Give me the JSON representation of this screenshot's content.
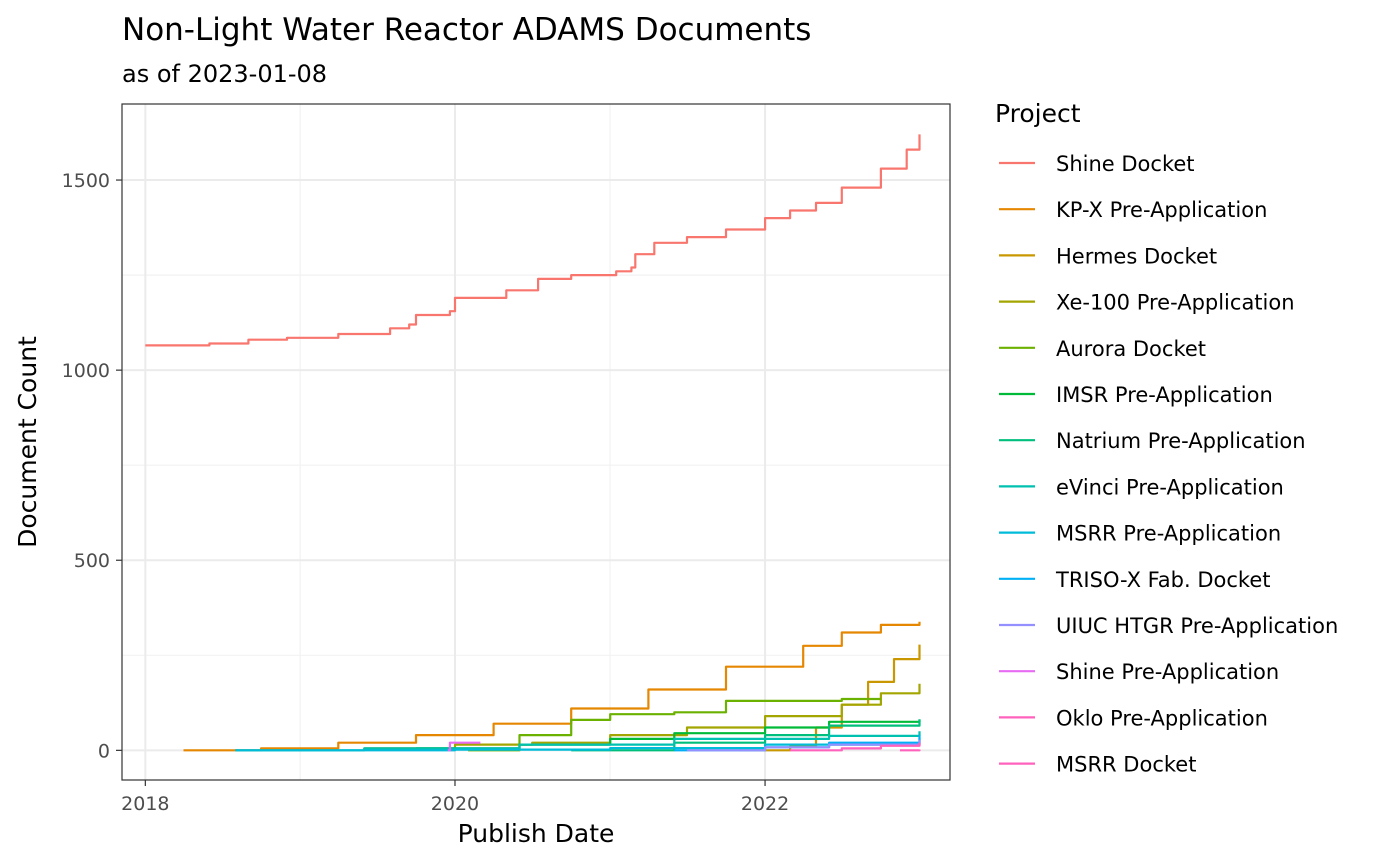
{
  "chart_data": {
    "type": "line",
    "title": "Non-Light Water Reactor ADAMS Documents",
    "subtitle": "as of 2023-01-08",
    "xlabel": "Publish Date",
    "ylabel": "Document Count",
    "xlim": [
      "2017-11-07",
      "2023-03-13"
    ],
    "ylim": [
      -78,
      1700
    ],
    "x_ticks": [
      {
        "value": "2018-01-01",
        "label": "2018"
      },
      {
        "value": "2020-01-01",
        "label": "2020"
      },
      {
        "value": "2022-01-01",
        "label": "2022"
      }
    ],
    "y_ticks": [
      {
        "value": 0,
        "label": "0"
      },
      {
        "value": 500,
        "label": "500"
      },
      {
        "value": 1000,
        "label": "1000"
      },
      {
        "value": 1500,
        "label": "1500"
      }
    ],
    "grid": true,
    "legend_title": "Project",
    "legend_position": "right",
    "series": [
      {
        "name": "Shine Docket",
        "color": "#F8766D",
        "points": [
          [
            "2018-01-01",
            1065
          ],
          [
            "2018-06-01",
            1070
          ],
          [
            "2018-09-01",
            1080
          ],
          [
            "2018-12-01",
            1085
          ],
          [
            "2019-04-01",
            1095
          ],
          [
            "2019-08-01",
            1110
          ],
          [
            "2019-09-15",
            1120
          ],
          [
            "2019-10-01",
            1145
          ],
          [
            "2019-12-20",
            1155
          ],
          [
            "2020-01-01",
            1190
          ],
          [
            "2020-05-01",
            1210
          ],
          [
            "2020-07-15",
            1240
          ],
          [
            "2020-10-01",
            1250
          ],
          [
            "2021-01-15",
            1260
          ],
          [
            "2021-02-20",
            1270
          ],
          [
            "2021-03-01",
            1305
          ],
          [
            "2021-04-15",
            1335
          ],
          [
            "2021-07-01",
            1350
          ],
          [
            "2021-10-01",
            1370
          ],
          [
            "2022-01-01",
            1400
          ],
          [
            "2022-03-01",
            1420
          ],
          [
            "2022-05-01",
            1440
          ],
          [
            "2022-07-01",
            1480
          ],
          [
            "2022-10-01",
            1530
          ],
          [
            "2022-12-01",
            1580
          ],
          [
            "2022-12-31",
            1620
          ]
        ]
      },
      {
        "name": "KP-X Pre-Application",
        "color": "#E58700",
        "points": [
          [
            "2018-04-01",
            0
          ],
          [
            "2018-10-01",
            5
          ],
          [
            "2019-04-01",
            20
          ],
          [
            "2019-10-01",
            40
          ],
          [
            "2020-04-01",
            70
          ],
          [
            "2020-10-01",
            110
          ],
          [
            "2021-04-01",
            160
          ],
          [
            "2021-10-01",
            220
          ],
          [
            "2022-04-01",
            275
          ],
          [
            "2022-07-01",
            310
          ],
          [
            "2022-10-01",
            330
          ],
          [
            "2022-12-31",
            338
          ]
        ]
      },
      {
        "name": "Hermes Docket",
        "color": "#C99800",
        "points": [
          [
            "2021-11-01",
            0
          ],
          [
            "2022-03-01",
            10
          ],
          [
            "2022-05-01",
            60
          ],
          [
            "2022-07-01",
            120
          ],
          [
            "2022-09-01",
            180
          ],
          [
            "2022-11-01",
            240
          ],
          [
            "2022-12-31",
            278
          ]
        ]
      },
      {
        "name": "Xe-100 Pre-Application",
        "color": "#A3A500",
        "points": [
          [
            "2019-06-01",
            5
          ],
          [
            "2020-01-01",
            15
          ],
          [
            "2020-07-01",
            20
          ],
          [
            "2021-01-01",
            40
          ],
          [
            "2021-07-01",
            60
          ],
          [
            "2022-01-01",
            90
          ],
          [
            "2022-07-01",
            120
          ],
          [
            "2022-10-01",
            150
          ],
          [
            "2022-12-31",
            175
          ]
        ]
      },
      {
        "name": "Aurora Docket",
        "color": "#6BB100",
        "points": [
          [
            "2020-02-01",
            0
          ],
          [
            "2020-06-01",
            40
          ],
          [
            "2020-10-01",
            80
          ],
          [
            "2021-01-01",
            95
          ],
          [
            "2021-06-01",
            100
          ],
          [
            "2021-10-01",
            130
          ],
          [
            "2022-07-01",
            135
          ],
          [
            "2022-10-01",
            135
          ]
        ]
      },
      {
        "name": "IMSR Pre-Application",
        "color": "#00BA38",
        "points": [
          [
            "2019-10-01",
            5
          ],
          [
            "2020-06-01",
            15
          ],
          [
            "2021-01-01",
            30
          ],
          [
            "2021-06-01",
            45
          ],
          [
            "2022-01-01",
            60
          ],
          [
            "2022-06-01",
            75
          ],
          [
            "2022-12-31",
            80
          ]
        ]
      },
      {
        "name": "Natrium Pre-Application",
        "color": "#00BF7D",
        "points": [
          [
            "2020-10-01",
            0
          ],
          [
            "2021-06-01",
            20
          ],
          [
            "2022-01-01",
            40
          ],
          [
            "2022-06-01",
            65
          ],
          [
            "2022-12-31",
            82
          ]
        ]
      },
      {
        "name": "eVinci Pre-Application",
        "color": "#00C0AF",
        "points": [
          [
            "2018-08-01",
            0
          ],
          [
            "2019-06-01",
            5
          ],
          [
            "2020-06-01",
            15
          ],
          [
            "2021-06-01",
            30
          ],
          [
            "2022-06-01",
            38
          ],
          [
            "2022-12-31",
            50
          ]
        ]
      },
      {
        "name": "MSRR Pre-Application",
        "color": "#00BCD8",
        "points": [
          [
            "2018-08-01",
            0
          ],
          [
            "2020-01-01",
            2
          ],
          [
            "2021-01-01",
            6
          ],
          [
            "2022-01-01",
            15
          ],
          [
            "2022-12-31",
            32
          ]
        ]
      },
      {
        "name": "TRISO-X Fab. Docket",
        "color": "#00B0F6",
        "points": [
          [
            "2021-06-01",
            0
          ],
          [
            "2022-01-01",
            8
          ],
          [
            "2022-06-01",
            20
          ],
          [
            "2022-12-31",
            40
          ]
        ]
      },
      {
        "name": "UIUC HTGR Pre-Application",
        "color": "#9590FF",
        "points": [
          [
            "2021-07-01",
            0
          ],
          [
            "2022-01-01",
            8
          ],
          [
            "2022-06-01",
            15
          ],
          [
            "2022-12-31",
            28
          ]
        ]
      },
      {
        "name": "Shine Pre-Application",
        "color": "#E76BF3",
        "points": [
          [
            "2019-12-15",
            0
          ],
          [
            "2019-12-20",
            20
          ],
          [
            "2020-03-01",
            20
          ]
        ]
      },
      {
        "name": "Oklo Pre-Application",
        "color": "#FF62BC",
        "points": [
          [
            "2022-03-01",
            0
          ],
          [
            "2022-07-01",
            5
          ],
          [
            "2022-10-01",
            12
          ],
          [
            "2022-12-31",
            20
          ]
        ]
      },
      {
        "name": "MSRR Docket",
        "color": "#FF62BC",
        "points": [
          [
            "2022-11-15",
            0
          ],
          [
            "2022-12-31",
            2
          ]
        ]
      }
    ]
  }
}
